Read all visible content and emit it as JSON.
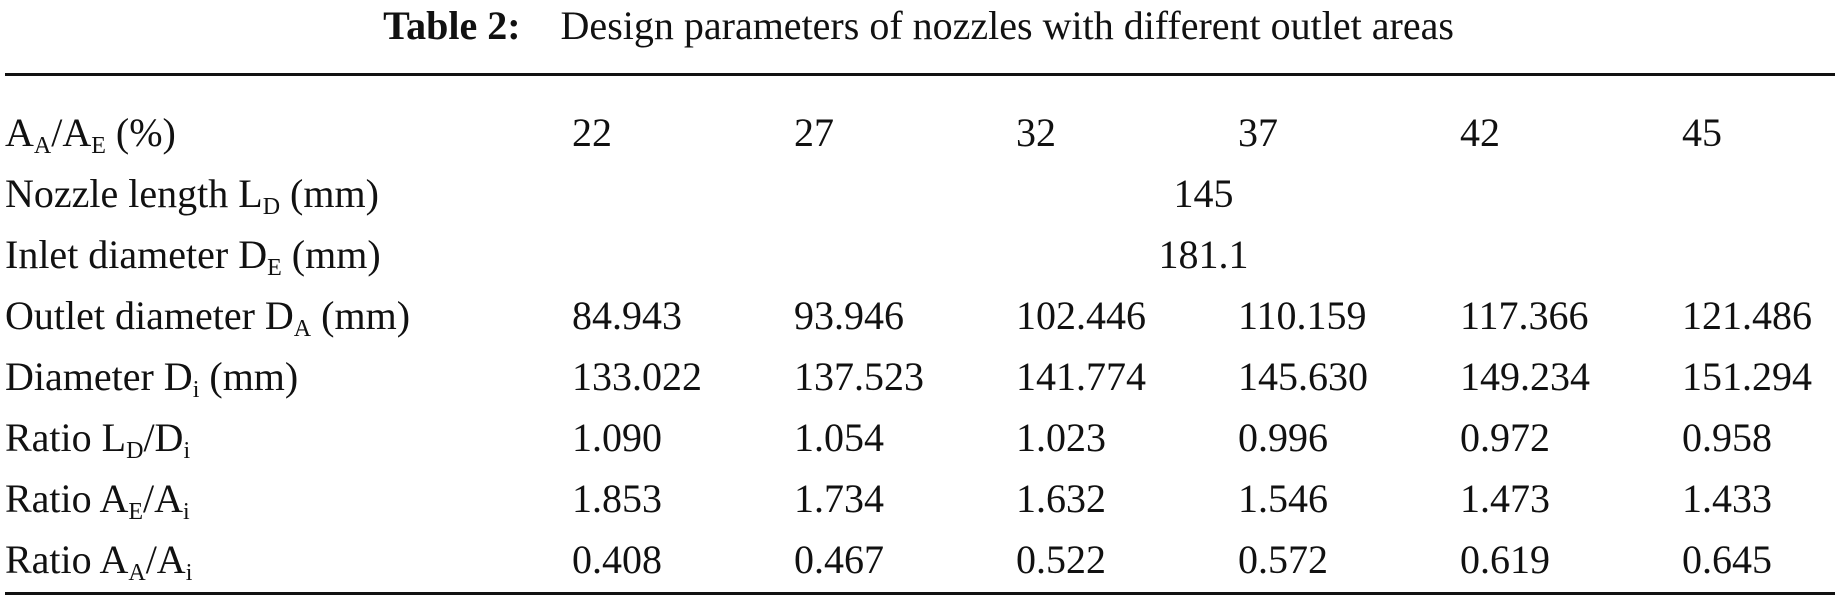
{
  "caption": {
    "label": "Table 2:",
    "text": "Design parameters of nozzles with different outlet areas"
  },
  "rows": {
    "area_ratio": {
      "label": {
        "a": "A",
        "a_sub": "A",
        "slash": "/A",
        "b_sub": "E",
        "rest": " (%)"
      },
      "values": [
        "22",
        "27",
        "32",
        "37",
        "42",
        "45"
      ]
    },
    "nozzle_length": {
      "label": {
        "pre": "Nozzle length L",
        "sub": "D",
        "post": " (mm)"
      },
      "value": "145"
    },
    "inlet_diameter": {
      "label": {
        "pre": "Inlet diameter D",
        "sub": "E",
        "post": " (mm)"
      },
      "value": "181.1"
    },
    "outlet_diameter": {
      "label": {
        "pre": "Outlet diameter D",
        "sub": "A",
        "post": " (mm)"
      },
      "values": [
        "84.943",
        "93.946",
        "102.446",
        "110.159",
        "117.366",
        "121.486"
      ]
    },
    "diameter_i": {
      "label": {
        "pre": "Diameter D",
        "sub": "i",
        "post": " (mm)"
      },
      "values": [
        "133.022",
        "137.523",
        "141.774",
        "145.630",
        "149.234",
        "151.294"
      ]
    },
    "ratio_ld_di": {
      "label": {
        "pre": "Ratio L",
        "sub1": "D",
        "mid": "/D",
        "sub2": "i"
      },
      "values": [
        "1.090",
        "1.054",
        "1.023",
        "0.996",
        "0.972",
        "0.958"
      ]
    },
    "ratio_ae_ai": {
      "label": {
        "pre": "Ratio A",
        "sub1": "E",
        "mid": "/A",
        "sub2": "i"
      },
      "values": [
        "1.853",
        "1.734",
        "1.632",
        "1.546",
        "1.473",
        "1.433"
      ]
    },
    "ratio_aa_ai": {
      "label": {
        "pre": "Ratio A",
        "sub1": "A",
        "mid": "/A",
        "sub2": "i"
      },
      "values": [
        "0.408",
        "0.467",
        "0.522",
        "0.572",
        "0.619",
        "0.645"
      ]
    }
  }
}
